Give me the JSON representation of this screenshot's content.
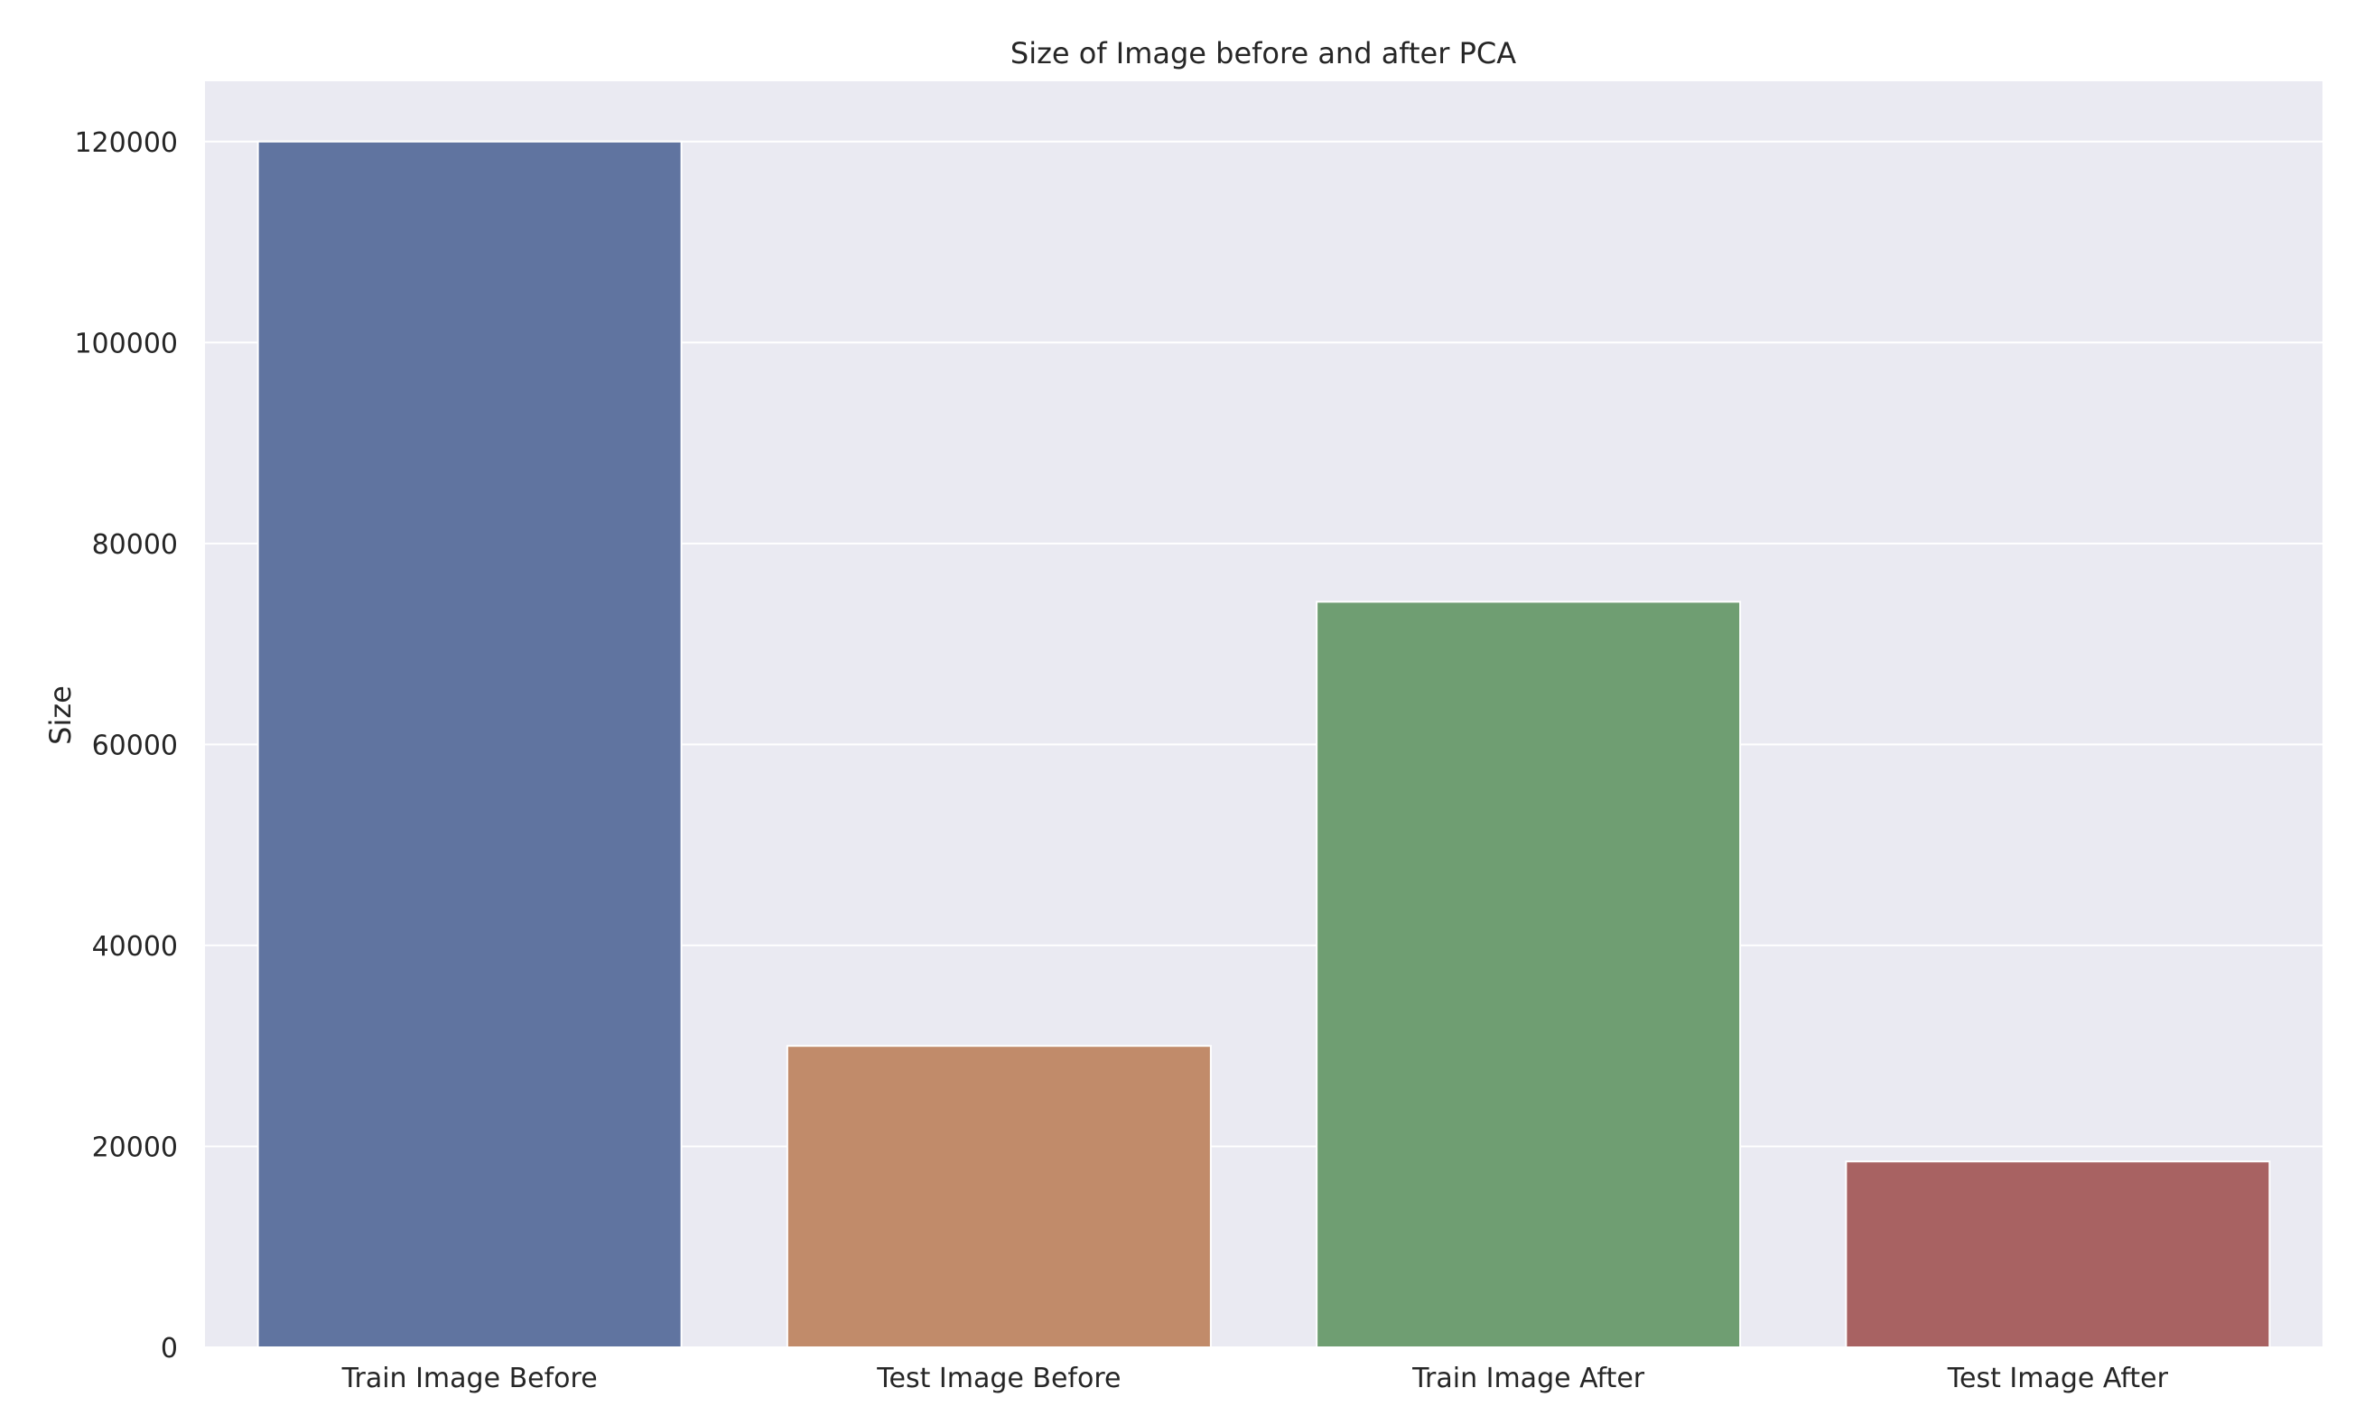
{
  "colors": {
    "background": "#ffffff",
    "plot_background": "#eaeaf2",
    "grid": "#ffffff",
    "text": "#262626",
    "bars": [
      "#6074a0",
      "#c18b6a",
      "#6f9e72",
      "#a86262"
    ]
  },
  "chart_data": {
    "type": "bar",
    "title": "Size of Image before and after PCA",
    "xlabel": "",
    "ylabel": "Size",
    "categories": [
      "Train Image Before",
      "Test Image Before",
      "Train Image After",
      "Test Image After"
    ],
    "values": [
      120000,
      30000,
      74200,
      18500
    ],
    "ylim": [
      0,
      126000
    ],
    "yticks": [
      0,
      20000,
      40000,
      60000,
      80000,
      100000,
      120000
    ],
    "ytick_labels": [
      "0",
      "20000",
      "40000",
      "60000",
      "80000",
      "100000",
      "120000"
    ],
    "grid": true,
    "legend": "none"
  }
}
